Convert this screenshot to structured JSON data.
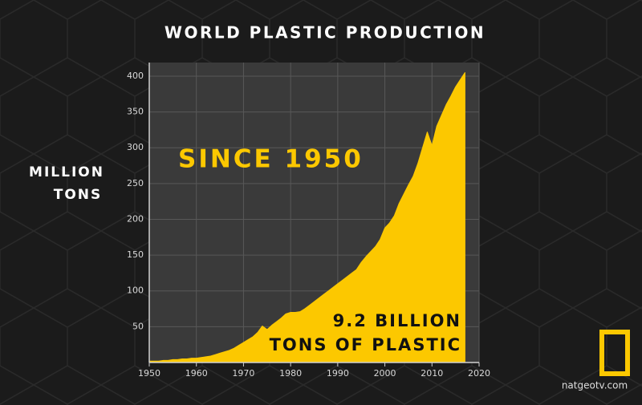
{
  "chart_data": {
    "type": "area",
    "title": "WORLD PLASTIC PRODUCTION",
    "ylabel": [
      "MILLION",
      "TONS"
    ],
    "annotations": [
      "SINCE 1950",
      "9.2 BILLION",
      "TONS OF PLASTIC"
    ],
    "source": "natgeotv.com",
    "color": "#fcc800",
    "x": [
      1950,
      1951,
      1952,
      1953,
      1954,
      1955,
      1956,
      1957,
      1958,
      1959,
      1960,
      1961,
      1962,
      1963,
      1964,
      1965,
      1966,
      1967,
      1968,
      1969,
      1970,
      1971,
      1972,
      1973,
      1974,
      1975,
      1976,
      1977,
      1978,
      1979,
      1980,
      1981,
      1982,
      1983,
      1984,
      1985,
      1986,
      1987,
      1988,
      1989,
      1990,
      1991,
      1992,
      1993,
      1994,
      1995,
      1996,
      1997,
      1998,
      1999,
      2000,
      2001,
      2002,
      2003,
      2004,
      2005,
      2006,
      2007,
      2008,
      2009,
      2010,
      2011,
      2012,
      2013,
      2014,
      2015,
      2016,
      2017
    ],
    "values": [
      2,
      2,
      2,
      3,
      3,
      4,
      4,
      5,
      5,
      6,
      6,
      7,
      8,
      9,
      11,
      13,
      15,
      17,
      20,
      24,
      28,
      32,
      36,
      42,
      51,
      46,
      52,
      57,
      62,
      68,
      70,
      70,
      71,
      75,
      80,
      85,
      90,
      95,
      100,
      105,
      110,
      115,
      120,
      125,
      130,
      140,
      148,
      155,
      162,
      172,
      188,
      195,
      205,
      222,
      235,
      248,
      260,
      278,
      300,
      322,
      303,
      330,
      345,
      360,
      372,
      385,
      395,
      405
    ],
    "xlim": [
      1950,
      2020
    ],
    "ylim": [
      0,
      419
    ],
    "xticks": [
      1950,
      1960,
      1970,
      1980,
      1990,
      2000,
      2010,
      2020
    ],
    "yticks": [
      50,
      100,
      150,
      200,
      250,
      300,
      350,
      400
    ],
    "grid": true
  }
}
